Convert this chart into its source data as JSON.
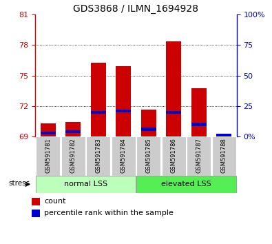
{
  "title": "GDS3868 / ILMN_1694928",
  "samples": [
    "GSM591781",
    "GSM591782",
    "GSM591783",
    "GSM591784",
    "GSM591785",
    "GSM591786",
    "GSM591787",
    "GSM591788"
  ],
  "count_values": [
    70.3,
    70.45,
    76.3,
    75.9,
    71.65,
    78.4,
    73.75,
    69.2
  ],
  "percentile_values": [
    3,
    4,
    20,
    21,
    6,
    20,
    10,
    1
  ],
  "ylim_left": [
    69,
    81
  ],
  "ylim_right": [
    0,
    100
  ],
  "yticks_left": [
    69,
    72,
    75,
    78,
    81
  ],
  "yticks_right": [
    0,
    25,
    50,
    75,
    100
  ],
  "bar_color": "#cc0000",
  "blue_color": "#0000cc",
  "left_tick_color": "#cc0000",
  "right_tick_color": "#0000cc",
  "group1_label": "normal LSS",
  "group2_label": "elevated LSS",
  "group1_indices": [
    0,
    1,
    2,
    3
  ],
  "group2_indices": [
    4,
    5,
    6,
    7
  ],
  "group1_color": "#bbffbb",
  "group2_color": "#55ee55",
  "stress_label": "stress",
  "legend_count": "count",
  "legend_pct": "percentile rank within the sample",
  "bar_width": 0.6,
  "bg_color": "#ffffff",
  "axis_bar_bg": "#cccccc"
}
